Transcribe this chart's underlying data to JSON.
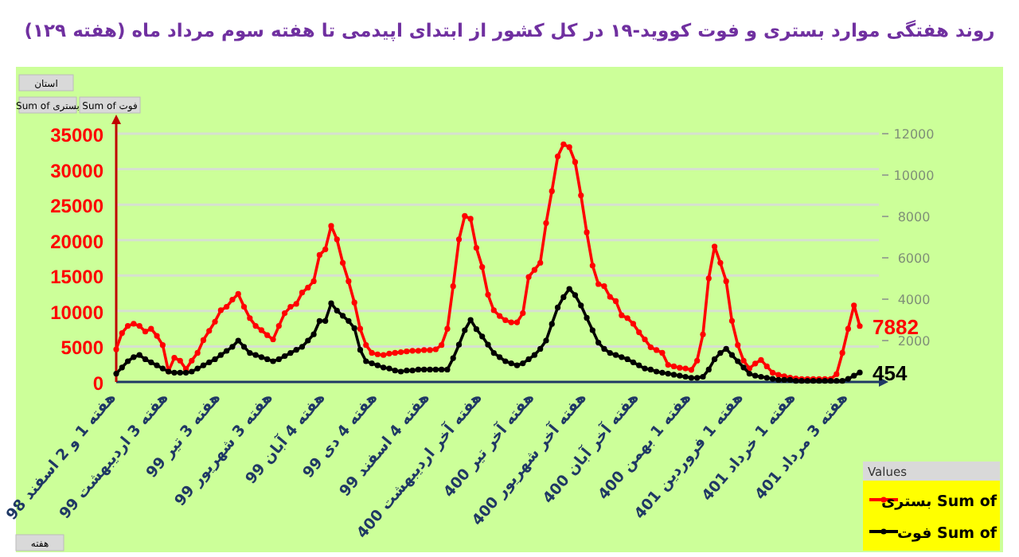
{
  "chart_data": {
    "type": "line",
    "title": "روند هفتگی موارد بستری و فوت کووید-۱۹ در کل کشور از ابتدای اپیدمی تا هفته سوم مرداد ماه (هفته ۱۲۹)",
    "categories": [
      "هفته 1 و 2 اسفند 98",
      null,
      null,
      null,
      null,
      null,
      null,
      null,
      null,
      "هفته 3 اردیبهشت 99",
      null,
      null,
      null,
      null,
      null,
      null,
      null,
      null,
      "هفته 3 تیر 99",
      null,
      null,
      null,
      null,
      null,
      null,
      null,
      null,
      "هفته 3 شهریور 99",
      null,
      null,
      null,
      null,
      null,
      null,
      null,
      null,
      "هفته 4 آبان 99",
      null,
      null,
      null,
      null,
      null,
      null,
      null,
      null,
      "هفته 4 دی 99",
      null,
      null,
      null,
      null,
      null,
      null,
      null,
      null,
      "هفته 4 اسفند 99",
      null,
      null,
      null,
      null,
      null,
      null,
      null,
      null,
      "هفته آخر اردیبهشت 400",
      null,
      null,
      null,
      null,
      null,
      null,
      null,
      null,
      "هفته آخر تیر 400",
      null,
      null,
      null,
      null,
      null,
      null,
      null,
      null,
      "هفته آخر شهریور 400",
      null,
      null,
      null,
      null,
      null,
      null,
      null,
      null,
      "هفته آخر آبان 400",
      null,
      null,
      null,
      null,
      null,
      null,
      null,
      null,
      "هفته 1 بهمن 400",
      null,
      null,
      null,
      null,
      null,
      null,
      null,
      null,
      "هفته 1 فروردین 401",
      null,
      null,
      null,
      null,
      null,
      null,
      null,
      null,
      "هفته 1 خرداد 401",
      null,
      null,
      null,
      null,
      null,
      null,
      null,
      null,
      "هفته 3 مرداد 401",
      null,
      null
    ],
    "ylim": [
      0,
      35000
    ],
    "yticks": [
      0,
      5000,
      10000,
      15000,
      20000,
      25000,
      30000,
      35000
    ],
    "y2lim": [
      0,
      12000
    ],
    "y2ticks": [
      2000,
      4000,
      6000,
      8000,
      10000,
      12000
    ],
    "grid": "y",
    "legend": "bottom right",
    "legend_title": "Values",
    "marker": "circle",
    "line_style": "solid",
    "annotations": [
      "استان",
      "Sum of فوت",
      "Sum of بستری",
      "هفته"
    ],
    "series": [
      {
        "name": "Sum of بستری",
        "color": "#ff0000",
        "values": [
          4600,
          6900,
          7900,
          8200,
          7900,
          7100,
          7500,
          6500,
          5200,
          1500,
          3400,
          3000,
          1800,
          3000,
          4100,
          5900,
          7200,
          8500,
          10100,
          10600,
          11600,
          12400,
          10600,
          9000,
          7900,
          7300,
          6600,
          6000,
          7900,
          9700,
          10600,
          11000,
          12600,
          13300,
          14200,
          17900,
          18700,
          22000,
          20100,
          16800,
          14200,
          11200,
          7500,
          5200,
          4100,
          3900,
          3800,
          4000,
          4100,
          4200,
          4300,
          4400,
          4400,
          4500,
          4500,
          4600,
          5200,
          7500,
          13500,
          20100,
          23400,
          23000,
          18900,
          16200,
          12300,
          10100,
          9300,
          8700,
          8400,
          8400,
          9700,
          14800,
          15800,
          16800,
          22400,
          26900,
          31800,
          33500,
          33100,
          31000,
          26300,
          21100,
          16400,
          13800,
          13500,
          12000,
          11400,
          9400,
          9000,
          8200,
          7000,
          6000,
          4900,
          4500,
          4100,
          2400,
          2200,
          2000,
          1900,
          1700,
          3000,
          6700,
          14600,
          19100,
          16800,
          14200,
          8600,
          5200,
          3000,
          1900,
          2600,
          3100,
          2200,
          1300,
          1000,
          800,
          600,
          500,
          400,
          400,
          400,
          400,
          400,
          400,
          1100,
          4100,
          7500,
          10800,
          7882
        ],
        "value_labels": [
          null,
          null,
          null,
          null,
          null,
          null,
          null,
          null,
          null,
          null,
          null,
          null,
          null,
          null,
          null,
          null,
          null,
          null,
          null,
          null,
          null,
          null,
          null,
          null,
          null,
          null,
          null,
          null,
          null,
          null,
          null,
          null,
          null,
          null,
          null,
          null,
          null,
          null,
          null,
          null,
          null,
          null,
          null,
          null,
          null,
          null,
          null,
          null,
          null,
          null,
          null,
          null,
          null,
          null,
          null,
          null,
          null,
          null,
          null,
          null,
          null,
          null,
          null,
          null,
          null,
          null,
          null,
          null,
          null,
          null,
          null,
          null,
          null,
          null,
          null,
          null,
          null,
          null,
          null,
          null,
          null,
          null,
          null,
          null,
          null,
          null,
          null,
          null,
          null,
          null,
          null,
          null,
          null,
          null,
          null,
          null,
          null,
          null,
          null,
          null,
          null,
          null,
          null,
          null,
          null,
          null,
          null,
          null,
          null,
          null,
          null,
          null,
          null,
          null,
          null,
          null,
          null,
          null,
          null,
          null,
          null,
          null,
          null,
          null,
          null,
          null,
          null,
          null,
          "7882"
        ]
      },
      {
        "name": "Sum of فوت",
        "color": "#000000",
        "axis": "y2",
        "values": [
          400,
          700,
          1000,
          1200,
          1300,
          1100,
          950,
          800,
          650,
          500,
          450,
          450,
          450,
          500,
          650,
          800,
          950,
          1100,
          1300,
          1500,
          1700,
          2000,
          1700,
          1400,
          1300,
          1200,
          1100,
          1000,
          1100,
          1250,
          1400,
          1550,
          1700,
          2000,
          2300,
          2950,
          2950,
          3800,
          3450,
          3200,
          2950,
          2600,
          1550,
          1000,
          900,
          800,
          700,
          650,
          550,
          500,
          550,
          550,
          600,
          600,
          600,
          600,
          600,
          600,
          1150,
          1800,
          2500,
          3000,
          2550,
          2200,
          1800,
          1400,
          1200,
          1000,
          900,
          800,
          900,
          1100,
          1300,
          1600,
          2000,
          2800,
          3600,
          4100,
          4500,
          4200,
          3700,
          3100,
          2500,
          1900,
          1600,
          1400,
          1300,
          1200,
          1100,
          950,
          800,
          650,
          600,
          500,
          450,
          400,
          350,
          300,
          250,
          200,
          200,
          250,
          600,
          1100,
          1400,
          1600,
          1300,
          1000,
          700,
          400,
          300,
          250,
          200,
          150,
          100,
          100,
          100,
          50,
          50,
          50,
          50,
          50,
          50,
          50,
          50,
          50,
          150,
          300,
          454
        ],
        "value_labels": [
          null,
          null,
          null,
          null,
          null,
          null,
          null,
          null,
          null,
          null,
          null,
          null,
          null,
          null,
          null,
          null,
          null,
          null,
          null,
          null,
          null,
          null,
          null,
          null,
          null,
          null,
          null,
          null,
          null,
          null,
          null,
          null,
          null,
          null,
          null,
          null,
          null,
          null,
          null,
          null,
          null,
          null,
          null,
          null,
          null,
          null,
          null,
          null,
          null,
          null,
          null,
          null,
          null,
          null,
          null,
          null,
          null,
          null,
          null,
          null,
          null,
          null,
          null,
          null,
          null,
          null,
          null,
          null,
          null,
          null,
          null,
          null,
          null,
          null,
          null,
          null,
          null,
          null,
          null,
          null,
          null,
          null,
          null,
          null,
          null,
          null,
          null,
          null,
          null,
          null,
          null,
          null,
          null,
          null,
          null,
          null,
          null,
          null,
          null,
          null,
          null,
          null,
          null,
          null,
          null,
          null,
          null,
          null,
          null,
          null,
          null,
          null,
          null,
          null,
          null,
          null,
          null,
          null,
          null,
          null,
          null,
          null,
          null,
          null,
          null,
          null,
          null,
          null,
          "454"
        ]
      }
    ]
  }
}
